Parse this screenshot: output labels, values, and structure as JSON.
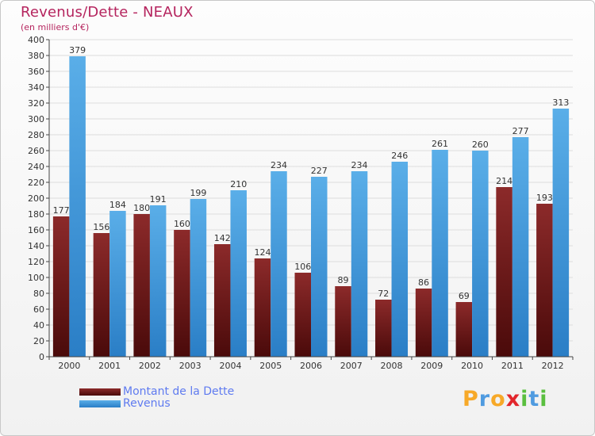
{
  "header": {
    "title": "Revenus/Dette - NEAUX",
    "subtitle": "(en milliers d'€)"
  },
  "logo": {
    "text": "Proxiti",
    "letters": [
      {
        "char": "P",
        "color": "#f7a928"
      },
      {
        "char": "r",
        "color": "#4f9be0"
      },
      {
        "char": "o",
        "color": "#f7a928"
      },
      {
        "char": "x",
        "color": "#e2262c"
      },
      {
        "char": "i",
        "color": "#5abf3f"
      },
      {
        "char": "t",
        "color": "#4f9be0"
      },
      {
        "char": "i",
        "color": "#5abf3f"
      }
    ]
  },
  "colors": {
    "dette": "#7d1f1f",
    "revenus": "#4ea2e0",
    "axis": "#444444",
    "grid": "#dddddd"
  },
  "chart_data": {
    "type": "bar",
    "title": "Revenus/Dette - NEAUX",
    "subtitle": "(en milliers d'€)",
    "categories": [
      "2000",
      "2001",
      "2002",
      "2003",
      "2004",
      "2005",
      "2006",
      "2007",
      "2008",
      "2009",
      "2010",
      "2011",
      "2012"
    ],
    "series": [
      {
        "name": "Montant de la Dette",
        "values": [
          177,
          156,
          180,
          160,
          142,
          124,
          106,
          89,
          72,
          86,
          69,
          214,
          193
        ]
      },
      {
        "name": "Revenus",
        "values": [
          379,
          184,
          191,
          199,
          210,
          234,
          227,
          234,
          246,
          261,
          260,
          277,
          313
        ]
      }
    ],
    "ylim": [
      0,
      400
    ],
    "ytick_step": 20,
    "grid": true,
    "legend": "bottom-left"
  }
}
